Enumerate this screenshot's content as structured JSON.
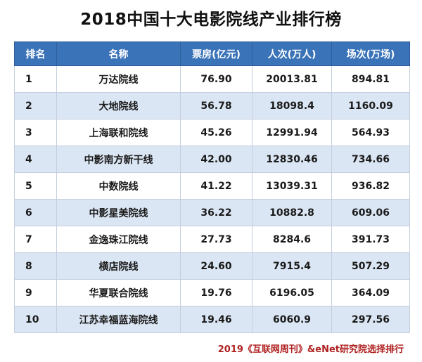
{
  "title": "2018中国十大电影院线产业排行榜",
  "chart_data": {
    "type": "table",
    "columns": [
      "排名",
      "名称",
      "票房(亿元)",
      "人次(万人)",
      "场次(万场)"
    ],
    "rows": [
      {
        "rank": "1",
        "name": "万达院线",
        "box": "76.90",
        "admissions": "20013.81",
        "screenings": "894.81"
      },
      {
        "rank": "2",
        "name": "大地院线",
        "box": "56.78",
        "admissions": "18098.4",
        "screenings": "1160.09"
      },
      {
        "rank": "3",
        "name": "上海联和院线",
        "box": "45.26",
        "admissions": "12991.94",
        "screenings": "564.93"
      },
      {
        "rank": "4",
        "name": "中影南方新干线",
        "box": "42.00",
        "admissions": "12830.46",
        "screenings": "734.66"
      },
      {
        "rank": "5",
        "name": "中数院线",
        "box": "41.22",
        "admissions": "13039.31",
        "screenings": "936.82"
      },
      {
        "rank": "6",
        "name": "中影星美院线",
        "box": "36.22",
        "admissions": "10882.8",
        "screenings": "609.06"
      },
      {
        "rank": "7",
        "name": "金逸珠江院线",
        "box": "27.73",
        "admissions": "8284.6",
        "screenings": "391.73"
      },
      {
        "rank": "8",
        "name": "横店院线",
        "box": "24.60",
        "admissions": "7915.4",
        "screenings": "507.29"
      },
      {
        "rank": "9",
        "name": "华夏联合院线",
        "box": "19.76",
        "admissions": "6196.05",
        "screenings": "364.09"
      },
      {
        "rank": "10",
        "name": "江苏幸福蓝海院线",
        "box": "19.46",
        "admissions": "6060.9",
        "screenings": "297.56"
      }
    ]
  },
  "source": "2019《互联网周刊》&eNet研究院选择排行",
  "colors": {
    "header_bg": "#3a73b8",
    "stripe_bg": "#dbe6f4",
    "source_text": "#b02020"
  }
}
